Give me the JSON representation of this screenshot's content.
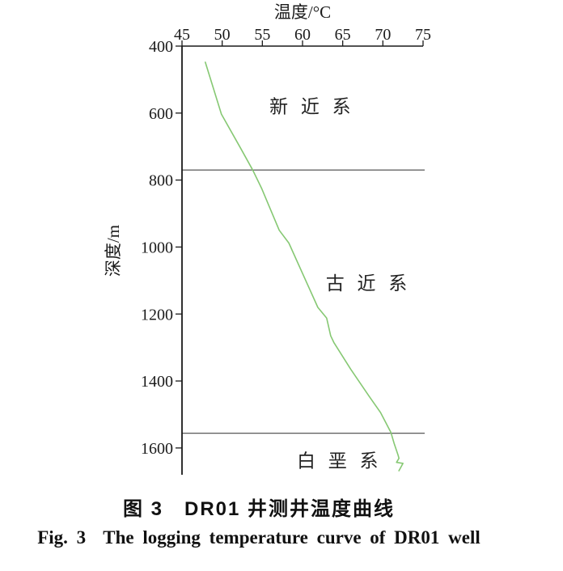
{
  "figure": {
    "caption_zh": "图 3　DR01 井测井温度曲线",
    "caption_en": "Fig. 3  The logging temperature curve of DR01 well"
  },
  "chart_data": {
    "type": "line",
    "title": "",
    "xlabel": "温度/°C",
    "ylabel": "深度/m",
    "xlim": [
      45,
      75
    ],
    "x_ticks": [
      45,
      50,
      55,
      60,
      65,
      70,
      75
    ],
    "ylim": [
      400,
      1680
    ],
    "y_ticks": [
      400,
      600,
      800,
      1000,
      1200,
      1400,
      1600
    ],
    "y_axis_inverted_depth": true,
    "grid": false,
    "legend": "none",
    "axis_color": "#1a1a1a",
    "boundary_line_color": "#444444",
    "stratum_boundaries_m": [
      770,
      1556
    ],
    "strata_labels": [
      {
        "text": "新 近 系",
        "temp_c": 61.2,
        "depth_m": 580
      },
      {
        "text": "古 近 系",
        "temp_c": 68.2,
        "depth_m": 1108
      },
      {
        "text": "白 垩 系",
        "temp_c": 64.6,
        "depth_m": 1638
      }
    ],
    "series": [
      {
        "name": "DR01 logging temperature curve",
        "color": "#86c873",
        "points": [
          [
            47.9,
            448
          ],
          [
            49.9,
            603
          ],
          [
            52.3,
            705
          ],
          [
            53.8,
            770
          ],
          [
            54.9,
            824
          ],
          [
            57.1,
            950
          ],
          [
            58.3,
            988
          ],
          [
            61.9,
            1180
          ],
          [
            63.0,
            1212
          ],
          [
            63.5,
            1265
          ],
          [
            63.9,
            1285
          ],
          [
            66.0,
            1365
          ],
          [
            68.3,
            1446
          ],
          [
            69.7,
            1494
          ],
          [
            71.0,
            1554
          ],
          [
            71.4,
            1586
          ],
          [
            71.9,
            1622
          ],
          [
            72.0,
            1631
          ],
          [
            71.7,
            1643
          ],
          [
            72.5,
            1646
          ],
          [
            72.0,
            1668
          ]
        ]
      }
    ]
  }
}
